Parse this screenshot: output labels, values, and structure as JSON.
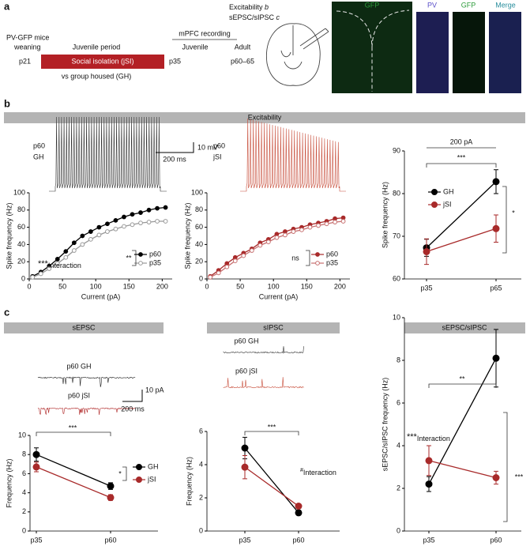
{
  "panel_labels": [
    "a",
    "b",
    "c"
  ],
  "panel_a": {
    "mice": "PV-GFP mice",
    "weaning": "weaning",
    "p21": "p21",
    "period": "Juvenile period",
    "isolation": "Social isolation (jSI)",
    "p35": "p35",
    "control": "vs group housed (GH)",
    "recording": "mPFC recording",
    "juvenile": "Juvenile",
    "adult": "Adult",
    "adult_age": "p60–65",
    "measure1": "Excitability",
    "measure1_panel": "b",
    "measure2": "sEPSC/sIPSC",
    "measure2_panel": "c",
    "images": [
      "GFP",
      "PV",
      "GFP",
      "Merge"
    ]
  },
  "section_headers": [
    "Excitability",
    "sEPSC",
    "sIPSC",
    "sEPSC/sIPSC"
  ],
  "chart_data": [
    {
      "type": "line",
      "trace_labels": [
        "p60",
        "GH"
      ],
      "scale_bar": [
        "10 mV",
        "200 ms"
      ],
      "x": [
        5,
        17.5,
        30,
        42.5,
        55,
        67.5,
        80,
        92.5,
        105,
        117.5,
        130,
        142.5,
        155,
        167.5,
        180,
        192.5,
        205
      ],
      "xlim": [
        0,
        215
      ],
      "xticks": [
        0,
        50,
        100,
        150,
        200
      ],
      "ylim": [
        0,
        100
      ],
      "yticks": [
        0,
        20,
        40,
        60,
        80,
        100
      ],
      "xlabel": "Current (pA)",
      "ylabel": "Spike frequency (Hz)",
      "legend": true,
      "series": [
        {
          "name": "p60",
          "color": "#000000",
          "filled": true,
          "values": [
            3,
            8,
            15,
            23,
            32,
            42,
            50,
            55,
            60,
            64,
            68,
            72,
            75,
            77,
            80,
            82,
            83
          ]
        },
        {
          "name": "p35",
          "color": "#999999",
          "filled": false,
          "values": [
            2,
            6,
            12,
            18,
            25,
            33,
            40,
            46,
            51,
            55,
            58,
            61,
            63,
            65,
            66,
            67,
            67
          ]
        }
      ],
      "annotations": [
        "**"
      ],
      "interaction": {
        "mark": "***",
        "label": "Interaction"
      }
    },
    {
      "type": "line",
      "trace_labels": [
        "p60",
        "jSI"
      ],
      "x": [
        5,
        17.5,
        30,
        42.5,
        55,
        67.5,
        80,
        92.5,
        105,
        117.5,
        130,
        142.5,
        155,
        167.5,
        180,
        192.5,
        205
      ],
      "xlim": [
        0,
        215
      ],
      "xticks": [
        0,
        50,
        100,
        150,
        200
      ],
      "ylim": [
        0,
        100
      ],
      "yticks": [
        0,
        20,
        40,
        60,
        80,
        100
      ],
      "xlabel": "Current (pA)",
      "ylabel": "Spike frequency (Hz)",
      "legend": true,
      "series": [
        {
          "name": "p60",
          "color": "#a82a2a",
          "filled": true,
          "values": [
            3,
            10,
            18,
            25,
            30,
            35,
            42,
            46,
            52,
            55,
            58,
            60,
            63,
            65,
            67,
            70,
            71
          ]
        },
        {
          "name": "p35",
          "color": "#c77070",
          "filled": false,
          "values": [
            2,
            7,
            14,
            21,
            27,
            33,
            39,
            43,
            48,
            51,
            55,
            57,
            60,
            62,
            64,
            66,
            67
          ]
        }
      ],
      "annotations": [
        "ns"
      ]
    },
    {
      "type": "dot",
      "categories": [
        "p35",
        "p65"
      ],
      "ylim": [
        60,
        90
      ],
      "yticks": [
        60,
        70,
        80,
        90
      ],
      "ylabel": "Spike frequency (Hz)",
      "legend": true,
      "series": [
        {
          "name": "GH",
          "color": "#000000",
          "values": [
            67.3,
            82.8
          ],
          "errors": [
            2.0,
            2.8
          ]
        },
        {
          "name": "jSI",
          "color": "#a82a2a",
          "values": [
            66.4,
            71.8
          ],
          "errors": [
            3.0,
            3.2
          ]
        }
      ],
      "annotations": [
        "200 pA",
        "***",
        "*"
      ]
    },
    {
      "type": "dot",
      "trace_labels": [
        "p60 GH",
        "p60 jSI"
      ],
      "scale_bar": [
        "10 pA",
        "200 ms"
      ],
      "categories": [
        "p35",
        "p60"
      ],
      "ylim": [
        0,
        10
      ],
      "yticks": [
        0,
        2,
        4,
        6,
        8,
        10
      ],
      "ylabel": "Frequency (Hz)",
      "legend": true,
      "series": [
        {
          "name": "GH",
          "color": "#000000",
          "values": [
            8.0,
            4.7
          ],
          "errors": [
            0.7,
            0.35
          ]
        },
        {
          "name": "jSI",
          "color": "#a82a2a",
          "values": [
            6.7,
            3.5
          ],
          "errors": [
            0.5,
            0.3
          ]
        }
      ],
      "annotations": [
        "***",
        "*"
      ]
    },
    {
      "type": "dot",
      "trace_labels": [
        "p60 GH",
        "p60 jSI"
      ],
      "categories": [
        "p35",
        "p60"
      ],
      "ylim": [
        0,
        6
      ],
      "yticks": [
        0,
        2,
        4,
        6
      ],
      "ylabel": "Frequency (Hz)",
      "series": [
        {
          "name": "GH",
          "color": "#000000",
          "values": [
            5.0,
            1.1
          ],
          "errors": [
            0.65,
            0.15
          ]
        },
        {
          "name": "jSI",
          "color": "#a82a2a",
          "values": [
            3.85,
            1.5
          ],
          "errors": [
            0.7,
            0.12
          ]
        }
      ],
      "annotations": [
        "***"
      ],
      "interaction": {
        "mark": "#",
        "label": "Interaction"
      }
    },
    {
      "type": "dot",
      "categories": [
        "p35",
        "p60"
      ],
      "ylim": [
        0,
        10
      ],
      "yticks": [
        0,
        2,
        4,
        6,
        8,
        10
      ],
      "ylabel": "sEPSC/sIPSC frequency (Hz)",
      "series": [
        {
          "name": "GH",
          "color": "#000000",
          "values": [
            2.2,
            8.1
          ],
          "errors": [
            0.35,
            1.35
          ]
        },
        {
          "name": "jSI",
          "color": "#a82a2a",
          "values": [
            3.3,
            2.5
          ],
          "errors": [
            0.7,
            0.3
          ]
        }
      ],
      "annotations": [
        "**",
        "***"
      ],
      "interaction": {
        "mark": "***",
        "label": "Interaction"
      }
    }
  ]
}
